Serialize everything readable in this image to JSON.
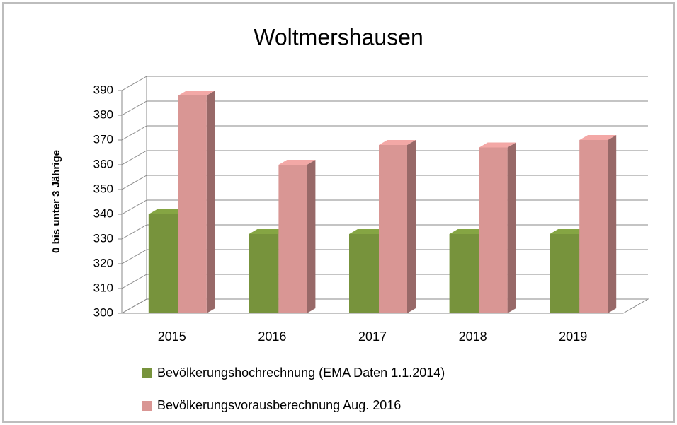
{
  "chart_data": {
    "type": "bar3d",
    "title": "Woltmershausen",
    "y_label": "0 bis unter 3 Jährige",
    "categories": [
      "2015",
      "2016",
      "2017",
      "2018",
      "2019"
    ],
    "series": [
      {
        "name": "Bevölkerungshochrechnung (EMA Daten 1.1.2014)",
        "color": "#77933c",
        "values": [
          340,
          332,
          332,
          332,
          332
        ]
      },
      {
        "name": "Bevölkerungsvorausberechnung Aug. 2016",
        "color": "#d99694",
        "values": [
          388,
          360,
          368,
          367,
          370
        ]
      }
    ],
    "ylim": [
      300,
      390
    ],
    "yticks": [
      300,
      310,
      320,
      330,
      340,
      350,
      360,
      370,
      380,
      390
    ],
    "grid": true
  }
}
